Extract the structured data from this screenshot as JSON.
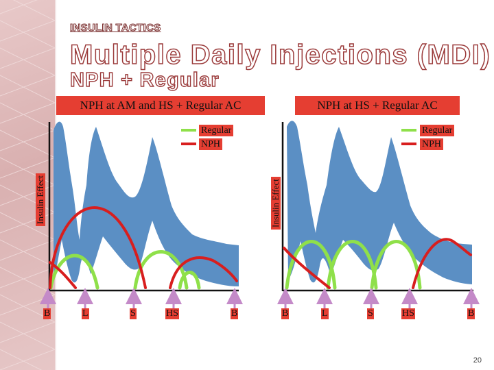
{
  "kicker": "INSULIN TACTICS",
  "title": "Multiple Daily Injections (MDI)",
  "subtitle": "NPH + Regular",
  "panels": [
    {
      "title": "NPH at AM and HS + Regular AC",
      "ylabel": "Insulin Effect",
      "legend": {
        "regular": "Regular",
        "nph": "NPH"
      },
      "meals": [
        "B",
        "L",
        "S",
        "HS",
        "B"
      ]
    },
    {
      "title": "NPH at HS + Regular AC",
      "ylabel": "Insulin Effect",
      "legend": {
        "regular": "Regular",
        "nph": "NPH"
      },
      "meals": [
        "B",
        "L",
        "S",
        "HS",
        "B"
      ]
    }
  ],
  "colors": {
    "regular": "#8fe04a",
    "nph": "#d81e1e",
    "glucose_band": "#5b8fc4",
    "label_bg": "#e53e32",
    "injection_arrow": "#c48ac8"
  },
  "page_number": "20"
}
